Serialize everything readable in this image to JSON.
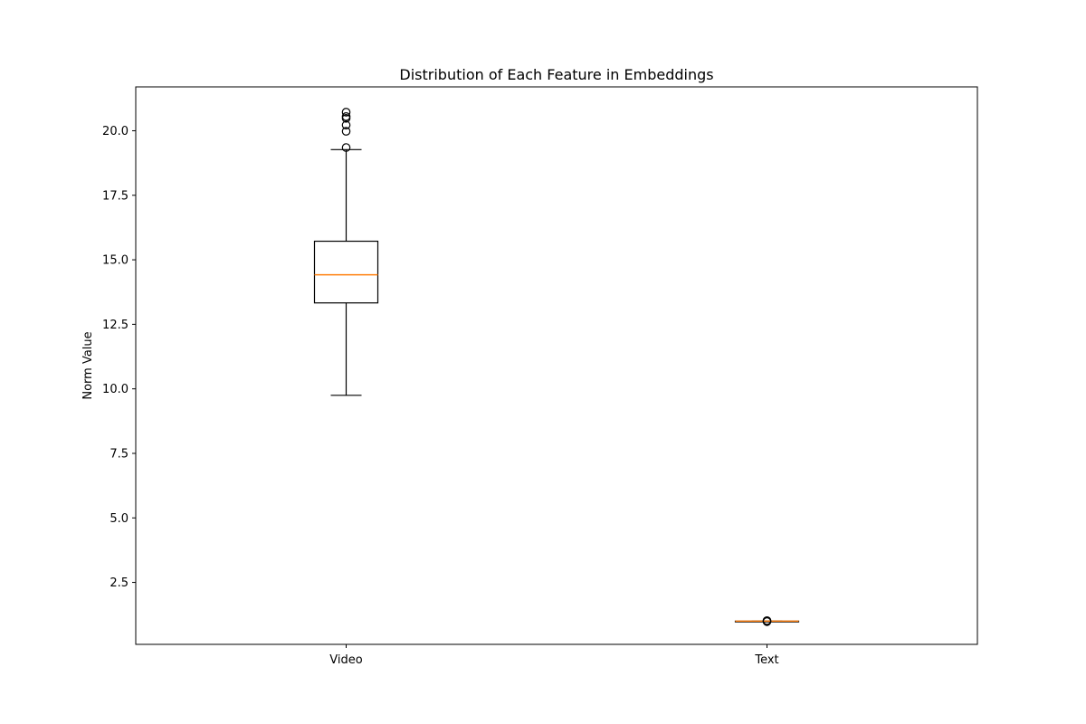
{
  "chart_data": {
    "type": "box",
    "title": "Distribution of Each Feature in Embeddings",
    "xlabel": "",
    "ylabel": "Norm Value",
    "ylim": [
      0.1,
      21.7
    ],
    "yticks": [
      "2.5",
      "5.0",
      "7.5",
      "10.0",
      "12.5",
      "15.0",
      "17.5",
      "20.0"
    ],
    "grid": false,
    "legend": "none",
    "colors": {
      "box": "#000000",
      "median": "#ff7f0e",
      "outlier": "#000000"
    },
    "categories": [
      "Video",
      "Text"
    ],
    "boxes": [
      {
        "name": "Video",
        "whisker_low": 9.75,
        "q1": 13.33,
        "median": 14.42,
        "q3": 15.72,
        "whisker_high": 19.27,
        "outliers": [
          19.35,
          19.98,
          20.22,
          20.48,
          20.55,
          20.72
        ]
      },
      {
        "name": "Text",
        "whisker_low": 1.0,
        "q1": 1.0,
        "median": 1.0,
        "q3": 1.0,
        "whisker_high": 1.0,
        "outliers": [
          0.98,
          1.0,
          1.02
        ]
      }
    ]
  }
}
